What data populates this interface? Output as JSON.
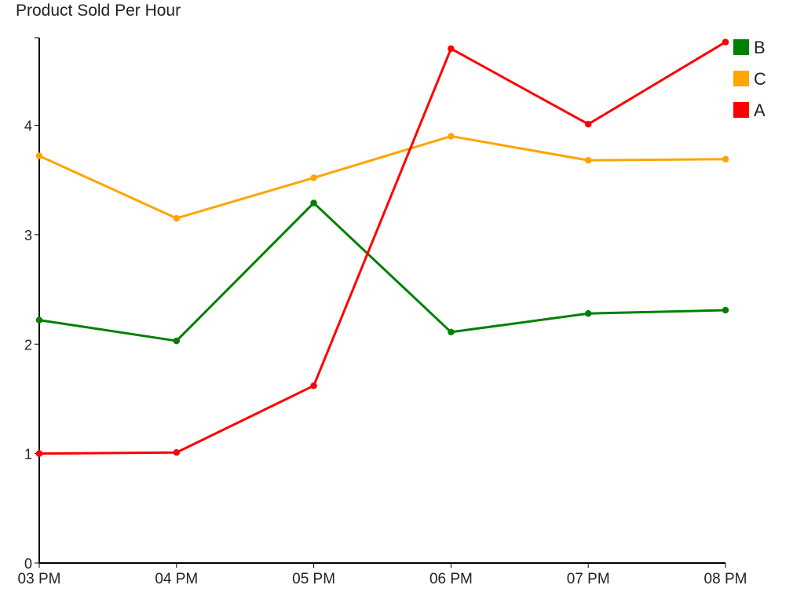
{
  "chart_data": {
    "type": "line",
    "title": "Product Sold Per Hour",
    "xlabel": "",
    "ylabel": "",
    "categories": [
      "03 PM",
      "04 PM",
      "05 PM",
      "06 PM",
      "07 PM",
      "08 PM"
    ],
    "ylim": [
      0,
      4.8
    ],
    "yticks": [
      0,
      1,
      2,
      3,
      4
    ],
    "grid": false,
    "legend_position": "top-right",
    "series": [
      {
        "name": "B",
        "color": "#008000",
        "values": [
          2.22,
          2.03,
          3.29,
          2.11,
          2.28,
          2.31
        ]
      },
      {
        "name": "C",
        "color": "#FFA500",
        "values": [
          3.72,
          3.15,
          3.52,
          3.9,
          3.68,
          3.69
        ]
      },
      {
        "name": "A",
        "color": "#FF0000",
        "values": [
          1.0,
          1.01,
          1.62,
          4.7,
          4.01,
          4.76
        ]
      }
    ]
  }
}
